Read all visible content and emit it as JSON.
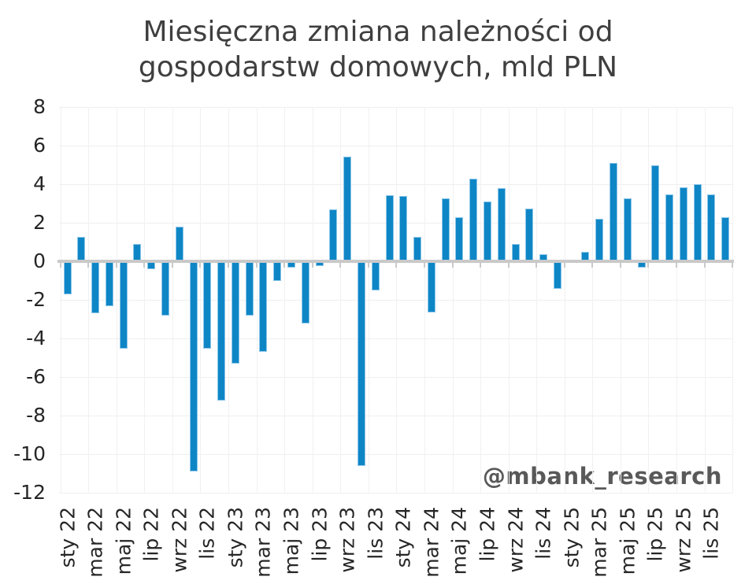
{
  "title": {
    "line1": "Miesięczna zmiana należności od",
    "line2": "gospodarstw domowych, mld PLN"
  },
  "watermark": "@mbank_research",
  "colors": {
    "bar": "#0e86c6",
    "bar_edge": "#8cc6e8",
    "axis_line": "#c9c9c9",
    "gridline": "#efefef",
    "title_text": "#3f3f3f",
    "tick_label": "#262626",
    "watermark_text": "#595959",
    "background": "#ffffff"
  },
  "chart_data": {
    "type": "bar",
    "title": "Miesięczna zmiana należności od gospodarstw domowych, mld PLN",
    "ylabel": "",
    "xlabel": "",
    "categories": [
      "sty 22",
      "lut 22",
      "mar 22",
      "kwi 22",
      "maj 22",
      "cze 22",
      "lip 22",
      "sie 22",
      "wrz 22",
      "paź 22",
      "lis 22",
      "gru 22",
      "sty 23",
      "lut 23",
      "mar 23",
      "kwi 23",
      "maj 23",
      "cze 23",
      "lip 23",
      "sie 23",
      "wrz 23",
      "paź 23",
      "lis 23",
      "gru 23",
      "sty 24",
      "lut 24",
      "mar 24",
      "kwi 24",
      "maj 24",
      "cze 24",
      "lip 24",
      "sie 24",
      "wrz 24",
      "paź 24",
      "lis 24",
      "gru 24",
      "sty 25",
      "lut 25",
      "mar 25",
      "kwi 25",
      "maj 25",
      "cze 25",
      "lip 25",
      "sie 25",
      "wrz 25",
      "paź 25",
      "lis 25",
      "gru 25"
    ],
    "values": [
      -1.7,
      1.3,
      -2.7,
      -2.3,
      -4.5,
      0.9,
      -0.4,
      -2.8,
      1.8,
      -10.9,
      -4.5,
      -7.2,
      -5.3,
      -2.8,
      -4.7,
      -1.0,
      -0.3,
      -3.2,
      -0.25,
      2.7,
      5.45,
      -10.6,
      -1.5,
      3.45,
      3.4,
      1.3,
      -2.65,
      3.3,
      2.3,
      4.3,
      3.1,
      3.8,
      0.9,
      2.75,
      0.4,
      -1.4,
      0.1,
      0.5,
      2.2,
      5.1,
      3.3,
      -0.3,
      5.0,
      3.5,
      3.85,
      4.0,
      3.5,
      2.3
    ],
    "x_tick_labels_shown": [
      "sty 22",
      "mar 22",
      "maj 22",
      "lip 22",
      "wrz 22",
      "lis 22",
      "sty 23",
      "mar 23",
      "maj 23",
      "lip 23",
      "wrz 23",
      "lis 23",
      "sty 24",
      "mar 24",
      "maj 24",
      "lip 24",
      "wrz 24",
      "lis 24",
      "sty 25",
      "mar 25",
      "maj 25",
      "lip 25",
      "wrz 25",
      "lis 25"
    ],
    "y_ticks": [
      8,
      6,
      4,
      2,
      0,
      -2,
      -4,
      -6,
      -8,
      -10,
      -12
    ],
    "ylim": [
      -12,
      8
    ],
    "grid": true,
    "legend_position": "none",
    "bar_color": "#0e86c6"
  }
}
